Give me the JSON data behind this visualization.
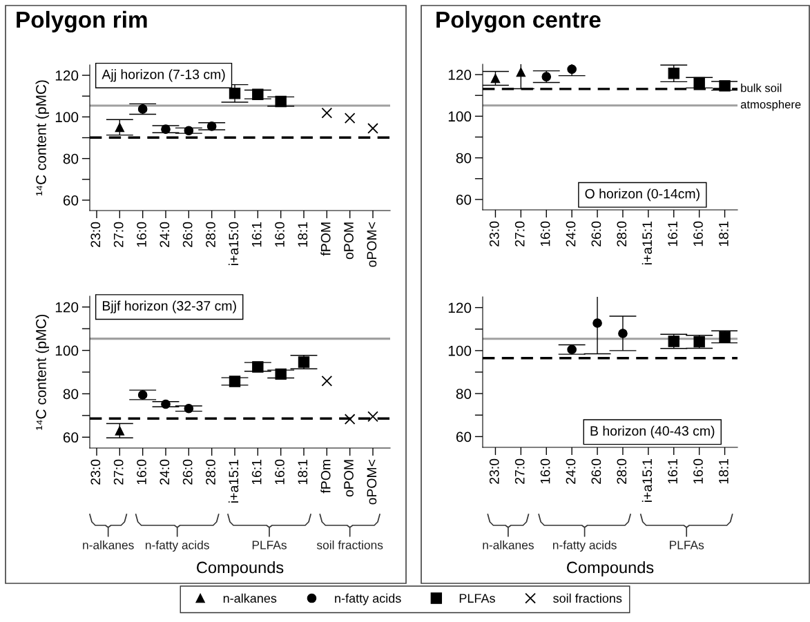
{
  "chart_data": [
    {
      "type": "scatter",
      "title": "Polygon rim",
      "subtitle": "Ajj horizon (7-13 cm)",
      "ylabel": "¹⁴C content (pMC)",
      "categories": [
        "23:0",
        "27:0",
        "16:0",
        "24:0",
        "26:0",
        "28:0",
        "i+a15:0",
        "16:1",
        "16:0",
        "18:1",
        "fPOM",
        "oPOM",
        "oPOM<"
      ],
      "series": [
        {
          "name": "n-alkanes",
          "color": "#000000",
          "marker": "triangle",
          "values": [
            null,
            95,
            null,
            null,
            null,
            null,
            null,
            null,
            null,
            null,
            null,
            null,
            null
          ],
          "errors": [
            null,
            3.7,
            null,
            null,
            null,
            null,
            null,
            null,
            null,
            null,
            null,
            null,
            null
          ]
        },
        {
          "name": "n-fatty acids",
          "color": "#000000",
          "marker": "circle",
          "values": [
            null,
            null,
            103.8,
            94.1,
            93.4,
            95.5,
            null,
            null,
            null,
            null,
            null,
            null,
            null
          ],
          "errors": [
            null,
            null,
            2.5,
            1.7,
            1.3,
            1.7,
            null,
            null,
            null,
            null,
            null,
            null,
            null
          ]
        },
        {
          "name": "PLFAs",
          "color": "#000000",
          "marker": "square",
          "values": [
            null,
            null,
            null,
            null,
            null,
            null,
            111.3,
            110.8,
            107.4,
            null,
            null,
            null,
            null
          ],
          "errors": [
            null,
            null,
            null,
            null,
            null,
            null,
            4.2,
            2.1,
            2.2,
            null,
            null,
            null,
            null
          ]
        },
        {
          "name": "soil fractions",
          "color": "#000000",
          "marker": "cross",
          "values": [
            null,
            null,
            null,
            null,
            null,
            null,
            null,
            null,
            null,
            null,
            101.9,
            99.4,
            94.5
          ]
        }
      ],
      "ref_lines": [
        {
          "axis": "y",
          "value": 105.4,
          "color": "#a0a0a0",
          "line_style": "solid"
        },
        {
          "axis": "y",
          "value": 90.1,
          "color": "#000000",
          "line_style": "dashed"
        }
      ],
      "ylim": [
        55,
        125
      ],
      "yticks": [
        60,
        {
          "value": 70,
          "label": null
        },
        80,
        {
          "value": 90,
          "label": null
        },
        100,
        {
          "value": 110,
          "label": null
        },
        120
      ],
      "grid": false,
      "legend": "bottom"
    },
    {
      "type": "scatter",
      "subtitle": "Bjjf horizon (32-37 cm)",
      "ylabel": "¹⁴C content (pMC)",
      "xlabel": "Compounds",
      "categories": [
        "23:0",
        "27:0",
        "16:0",
        "24:0",
        "26:0",
        "28:0",
        "i+a15:1",
        "16:1",
        "16:0",
        "18:1",
        "fPOm",
        "oPOM",
        "oPOM<"
      ],
      "series": [
        {
          "color": "#000000",
          "marker": "triangle",
          "values": [
            null,
            63,
            null,
            null,
            null,
            null,
            null,
            null,
            null,
            null,
            null,
            null,
            null
          ],
          "errors": [
            null,
            3.3,
            null,
            null,
            null,
            null,
            null,
            null,
            null,
            null,
            null,
            null,
            null
          ]
        },
        {
          "color": "#000000",
          "marker": "circle",
          "values": [
            null,
            null,
            79.5,
            75.2,
            73.2,
            null,
            null,
            null,
            null,
            null,
            null,
            null,
            null
          ],
          "errors": [
            null,
            null,
            2.2,
            1.2,
            1.2,
            null,
            null,
            null,
            null,
            null,
            null,
            null,
            null
          ]
        },
        {
          "color": "#000000",
          "marker": "square",
          "values": [
            null,
            null,
            null,
            null,
            null,
            null,
            85.7,
            92.4,
            89.1,
            94.6,
            null,
            null,
            null
          ],
          "errors": [
            null,
            null,
            null,
            null,
            null,
            null,
            1.7,
            2.0,
            1.8,
            3.1,
            null,
            null,
            null
          ]
        },
        {
          "color": "#000000",
          "marker": "cross",
          "values": [
            null,
            null,
            null,
            null,
            null,
            null,
            null,
            null,
            null,
            null,
            85.9,
            68.3,
            69.5
          ]
        }
      ],
      "ref_lines": [
        {
          "axis": "y",
          "value": 105.4,
          "color": "#a0a0a0",
          "line_style": "solid"
        },
        {
          "axis": "y",
          "value": 68.6,
          "color": "#000000",
          "line_style": "dashed"
        }
      ],
      "annotations": [
        "n-alkanes",
        "n-fatty acids",
        "PLFAs",
        "soil fractions"
      ],
      "ylim": [
        55,
        125
      ],
      "yticks": [
        60,
        {
          "value": 70,
          "label": null
        },
        80,
        {
          "value": 90,
          "label": null
        },
        100,
        {
          "value": 110,
          "label": null
        },
        120
      ],
      "grid": false
    },
    {
      "type": "scatter",
      "title": "Polygon centre",
      "subtitle": "O horizon (0-14cm)",
      "categories": [
        "23:0",
        "27:0",
        "16:0",
        "24:0",
        "26:0",
        "28:0",
        "i+a15:1",
        "16:1",
        "16:0",
        "18:1"
      ],
      "series": [
        {
          "color": "#000000",
          "marker": "triangle",
          "values": [
            118.2,
            121.2,
            null,
            null,
            null,
            null,
            null,
            null,
            null,
            null
          ],
          "errors": [
            3.3,
            8.0,
            null,
            null,
            null,
            null,
            null,
            null,
            null,
            null
          ]
        },
        {
          "color": "#000000",
          "marker": "circle",
          "values": [
            null,
            null,
            119.0,
            122.6,
            null,
            null,
            null,
            null,
            null,
            null
          ],
          "errors": [
            null,
            null,
            2.8,
            3.1,
            null,
            null,
            null,
            null,
            null,
            null
          ]
        },
        {
          "color": "#000000",
          "marker": "square",
          "values": [
            null,
            null,
            null,
            null,
            null,
            null,
            null,
            120.6,
            116.1,
            114.6
          ],
          "errors": [
            null,
            null,
            null,
            null,
            null,
            null,
            null,
            4.0,
            2.5,
            2.1
          ]
        }
      ],
      "ref_lines": [
        {
          "axis": "y",
          "value": 105.2,
          "color": "#a0a0a0",
          "line_style": "solid",
          "label": "atmosphere"
        },
        {
          "axis": "y",
          "value": 113.1,
          "color": "#000000",
          "line_style": "dashed",
          "label": "bulk soil"
        }
      ],
      "ylim": [
        55,
        125
      ],
      "yticks": [
        60,
        {
          "value": 70,
          "label": null
        },
        80,
        {
          "value": 90,
          "label": null
        },
        100,
        {
          "value": 110,
          "label": null
        },
        120
      ],
      "grid": false
    },
    {
      "type": "scatter",
      "subtitle": "B horizon (40-43 cm)",
      "xlabel": "Compounds",
      "categories": [
        "23:0",
        "27:0",
        "16:0",
        "24:0",
        "26:0",
        "28:0",
        "i+a15:1",
        "16:1",
        "16:0",
        "18:1"
      ],
      "series": [
        {
          "color": "#000000",
          "marker": "circle",
          "values": [
            null,
            null,
            null,
            100.5,
            112.8,
            108.0,
            null,
            null,
            null,
            null
          ],
          "errors": [
            null,
            null,
            null,
            2.2,
            14.3,
            8.0,
            null,
            null,
            null,
            null
          ]
        },
        {
          "color": "#000000",
          "marker": "square",
          "values": [
            null,
            null,
            null,
            null,
            null,
            null,
            null,
            104.3,
            104.1,
            106.4
          ],
          "errors": [
            null,
            null,
            null,
            null,
            null,
            null,
            null,
            3.3,
            3.0,
            2.8
          ]
        }
      ],
      "ref_lines": [
        {
          "axis": "y",
          "value": 105.5,
          "color": "#a0a0a0",
          "line_style": "solid"
        },
        {
          "axis": "y",
          "value": 96.5,
          "color": "#000000",
          "line_style": "dashed"
        }
      ],
      "annotations": [
        "n-alkanes",
        "n-fatty acids",
        "PLFAs"
      ],
      "ylim": [
        55,
        125
      ],
      "yticks": [
        60,
        {
          "value": 70,
          "label": null
        },
        80,
        {
          "value": 90,
          "label": null
        },
        100,
        {
          "value": 110,
          "label": null
        },
        120
      ],
      "grid": false
    }
  ]
}
